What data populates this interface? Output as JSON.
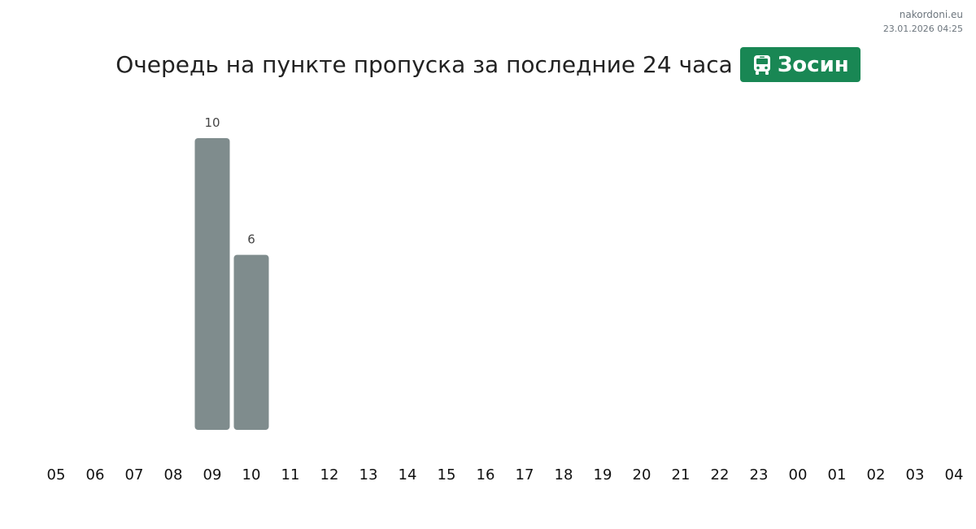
{
  "site": {
    "name": "nakordoni.eu",
    "timestamp": "23.01.2026 04:25"
  },
  "header": {
    "title": "Очередь на пункте пропуска за последние 24 часа",
    "badge_label": "Зосин",
    "badge_icon": "bus-icon",
    "badge_color": "#198754"
  },
  "chart_data": {
    "type": "bar",
    "categories": [
      "05",
      "06",
      "07",
      "08",
      "09",
      "10",
      "11",
      "12",
      "13",
      "14",
      "15",
      "16",
      "17",
      "18",
      "19",
      "20",
      "21",
      "22",
      "23",
      "00",
      "01",
      "02",
      "03",
      "04"
    ],
    "values": [
      0,
      0,
      0,
      0,
      10,
      6,
      0,
      0,
      0,
      0,
      0,
      0,
      0,
      0,
      0,
      0,
      0,
      0,
      0,
      0,
      0,
      0,
      0,
      0
    ],
    "ylim": [
      0,
      10
    ],
    "bar_color": "#7f8c8d",
    "grid": false,
    "legend": "none"
  }
}
